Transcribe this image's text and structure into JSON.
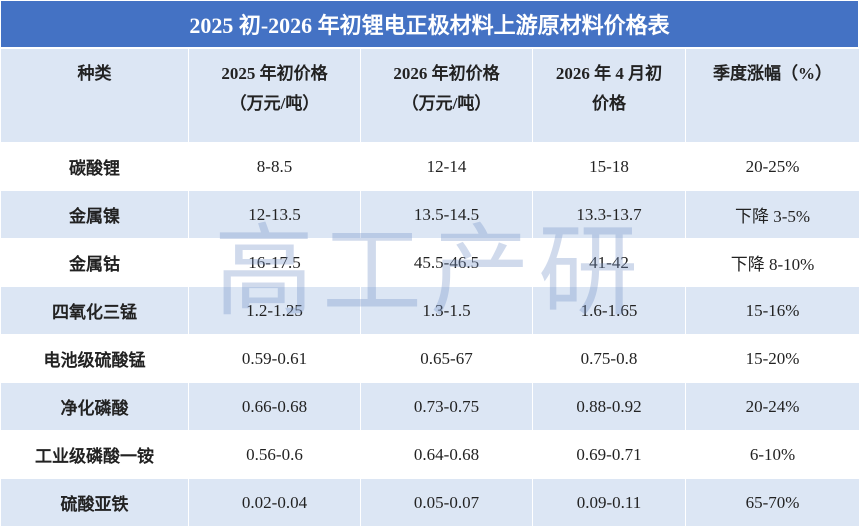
{
  "title": "2025 初-2026 年初锂电正极材料上游原材料价格表",
  "watermark": "高工产研",
  "table": {
    "header": [
      [
        "种类"
      ],
      [
        "2025 年初价格",
        "（万元/吨）"
      ],
      [
        "2026 年初价格",
        "（万元/吨）"
      ],
      [
        "2026 年 4 月初",
        "价格"
      ],
      [
        "季度涨幅（%）"
      ]
    ],
    "rows": [
      [
        "碳酸锂",
        "8-8.5",
        "12-14",
        "15-18",
        "20-25%"
      ],
      [
        "金属镍",
        "12-13.5",
        "13.5-14.5",
        "13.3-13.7",
        "下降 3-5%"
      ],
      [
        "金属钴",
        "16-17.5",
        "45.5-46.5",
        "41-42",
        "下降 8-10%"
      ],
      [
        "四氧化三锰",
        "1.2-1.25",
        "1.3-1.5",
        "1.6-1.65",
        "15-16%"
      ],
      [
        "电池级硫酸锰",
        "0.59-0.61",
        "0.65-67",
        "0.75-0.8",
        "15-20%"
      ],
      [
        "净化磷酸",
        "0.66-0.68",
        "0.73-0.75",
        "0.88-0.92",
        "20-24%"
      ],
      [
        "工业级磷酸一铵",
        "0.56-0.6",
        "0.64-0.68",
        "0.69-0.71",
        "6-10%"
      ],
      [
        "硫酸亚铁",
        "0.02-0.04",
        "0.05-0.07",
        "0.09-0.11",
        "65-70%"
      ]
    ]
  }
}
